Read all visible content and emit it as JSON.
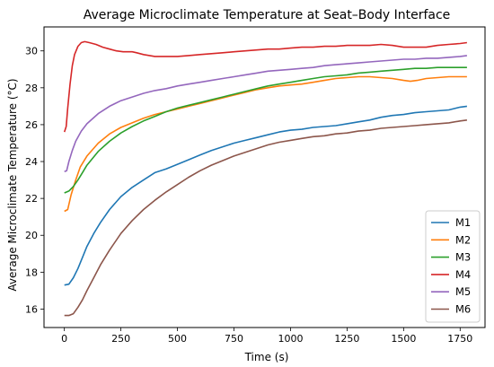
{
  "chart_data": {
    "type": "line",
    "title": "Average Microclimate Temperature at Seat–Body Interface",
    "xlabel": "Time (s)",
    "ylabel": "Average Microclimate Temperature (°C)",
    "xlim": [
      -90,
      1860
    ],
    "ylim": [
      15.0,
      31.3
    ],
    "xticks": [
      0,
      250,
      500,
      750,
      1000,
      1250,
      1500,
      1750
    ],
    "yticks": [
      16,
      18,
      20,
      22,
      24,
      26,
      28,
      30
    ],
    "grid": false,
    "legend_position": "lower-right",
    "series": [
      {
        "name": "M1",
        "color": "#1f77b4",
        "points": [
          [
            0,
            17.3
          ],
          [
            20,
            17.35
          ],
          [
            40,
            17.7
          ],
          [
            60,
            18.2
          ],
          [
            80,
            18.8
          ],
          [
            100,
            19.4
          ],
          [
            130,
            20.1
          ],
          [
            160,
            20.7
          ],
          [
            200,
            21.4
          ],
          [
            250,
            22.1
          ],
          [
            300,
            22.6
          ],
          [
            350,
            23.0
          ],
          [
            400,
            23.4
          ],
          [
            450,
            23.6
          ],
          [
            500,
            23.85
          ],
          [
            550,
            24.1
          ],
          [
            600,
            24.35
          ],
          [
            650,
            24.6
          ],
          [
            700,
            24.8
          ],
          [
            750,
            25.0
          ],
          [
            800,
            25.15
          ],
          [
            850,
            25.3
          ],
          [
            900,
            25.45
          ],
          [
            950,
            25.6
          ],
          [
            1000,
            25.7
          ],
          [
            1050,
            25.75
          ],
          [
            1100,
            25.85
          ],
          [
            1150,
            25.9
          ],
          [
            1200,
            25.95
          ],
          [
            1250,
            26.05
          ],
          [
            1300,
            26.15
          ],
          [
            1350,
            26.25
          ],
          [
            1400,
            26.4
          ],
          [
            1450,
            26.5
          ],
          [
            1500,
            26.55
          ],
          [
            1550,
            26.65
          ],
          [
            1600,
            26.7
          ],
          [
            1650,
            26.75
          ],
          [
            1700,
            26.8
          ],
          [
            1750,
            26.95
          ],
          [
            1780,
            27.0
          ]
        ]
      },
      {
        "name": "M2",
        "color": "#ff7f0e",
        "points": [
          [
            0,
            21.3
          ],
          [
            15,
            21.4
          ],
          [
            30,
            22.2
          ],
          [
            50,
            23.0
          ],
          [
            70,
            23.7
          ],
          [
            100,
            24.3
          ],
          [
            150,
            25.0
          ],
          [
            200,
            25.5
          ],
          [
            250,
            25.85
          ],
          [
            300,
            26.1
          ],
          [
            350,
            26.35
          ],
          [
            400,
            26.55
          ],
          [
            450,
            26.7
          ],
          [
            500,
            26.85
          ],
          [
            550,
            27.0
          ],
          [
            600,
            27.15
          ],
          [
            650,
            27.3
          ],
          [
            700,
            27.45
          ],
          [
            750,
            27.6
          ],
          [
            800,
            27.75
          ],
          [
            850,
            27.9
          ],
          [
            900,
            28.0
          ],
          [
            950,
            28.1
          ],
          [
            1000,
            28.15
          ],
          [
            1050,
            28.2
          ],
          [
            1100,
            28.3
          ],
          [
            1150,
            28.4
          ],
          [
            1200,
            28.5
          ],
          [
            1250,
            28.55
          ],
          [
            1300,
            28.6
          ],
          [
            1350,
            28.6
          ],
          [
            1400,
            28.55
          ],
          [
            1450,
            28.5
          ],
          [
            1500,
            28.4
          ],
          [
            1530,
            28.35
          ],
          [
            1560,
            28.4
          ],
          [
            1600,
            28.5
          ],
          [
            1650,
            28.55
          ],
          [
            1700,
            28.6
          ],
          [
            1750,
            28.6
          ],
          [
            1780,
            28.6
          ]
        ]
      },
      {
        "name": "M3",
        "color": "#2ca02c",
        "points": [
          [
            0,
            22.3
          ],
          [
            20,
            22.4
          ],
          [
            40,
            22.65
          ],
          [
            60,
            23.0
          ],
          [
            80,
            23.4
          ],
          [
            100,
            23.8
          ],
          [
            150,
            24.55
          ],
          [
            200,
            25.1
          ],
          [
            250,
            25.55
          ],
          [
            300,
            25.9
          ],
          [
            350,
            26.2
          ],
          [
            400,
            26.45
          ],
          [
            450,
            26.7
          ],
          [
            500,
            26.9
          ],
          [
            550,
            27.05
          ],
          [
            600,
            27.2
          ],
          [
            650,
            27.35
          ],
          [
            700,
            27.5
          ],
          [
            750,
            27.65
          ],
          [
            800,
            27.8
          ],
          [
            850,
            27.95
          ],
          [
            900,
            28.1
          ],
          [
            950,
            28.2
          ],
          [
            1000,
            28.3
          ],
          [
            1050,
            28.4
          ],
          [
            1100,
            28.5
          ],
          [
            1150,
            28.6
          ],
          [
            1200,
            28.65
          ],
          [
            1250,
            28.7
          ],
          [
            1300,
            28.8
          ],
          [
            1350,
            28.85
          ],
          [
            1400,
            28.9
          ],
          [
            1450,
            28.95
          ],
          [
            1500,
            29.0
          ],
          [
            1550,
            29.05
          ],
          [
            1600,
            29.05
          ],
          [
            1650,
            29.1
          ],
          [
            1700,
            29.1
          ],
          [
            1750,
            29.1
          ],
          [
            1780,
            29.1
          ]
        ]
      },
      {
        "name": "M4",
        "color": "#d62728",
        "points": [
          [
            0,
            25.6
          ],
          [
            8,
            25.9
          ],
          [
            15,
            26.9
          ],
          [
            25,
            28.2
          ],
          [
            35,
            29.2
          ],
          [
            45,
            29.8
          ],
          [
            60,
            30.25
          ],
          [
            75,
            30.45
          ],
          [
            90,
            30.5
          ],
          [
            110,
            30.45
          ],
          [
            140,
            30.35
          ],
          [
            170,
            30.2
          ],
          [
            200,
            30.1
          ],
          [
            230,
            30.0
          ],
          [
            260,
            29.95
          ],
          [
            300,
            29.95
          ],
          [
            320,
            29.9
          ],
          [
            350,
            29.8
          ],
          [
            400,
            29.7
          ],
          [
            450,
            29.7
          ],
          [
            500,
            29.7
          ],
          [
            550,
            29.75
          ],
          [
            600,
            29.8
          ],
          [
            650,
            29.85
          ],
          [
            700,
            29.9
          ],
          [
            750,
            29.95
          ],
          [
            800,
            30.0
          ],
          [
            850,
            30.05
          ],
          [
            900,
            30.1
          ],
          [
            950,
            30.1
          ],
          [
            1000,
            30.15
          ],
          [
            1050,
            30.2
          ],
          [
            1100,
            30.2
          ],
          [
            1150,
            30.25
          ],
          [
            1200,
            30.25
          ],
          [
            1250,
            30.3
          ],
          [
            1300,
            30.3
          ],
          [
            1350,
            30.3
          ],
          [
            1400,
            30.35
          ],
          [
            1450,
            30.3
          ],
          [
            1500,
            30.2
          ],
          [
            1550,
            30.2
          ],
          [
            1600,
            30.2
          ],
          [
            1650,
            30.3
          ],
          [
            1700,
            30.35
          ],
          [
            1750,
            30.4
          ],
          [
            1780,
            30.45
          ]
        ]
      },
      {
        "name": "M5",
        "color": "#9467bd",
        "points": [
          [
            0,
            23.45
          ],
          [
            10,
            23.5
          ],
          [
            20,
            24.0
          ],
          [
            35,
            24.6
          ],
          [
            50,
            25.1
          ],
          [
            75,
            25.65
          ],
          [
            100,
            26.05
          ],
          [
            150,
            26.6
          ],
          [
            200,
            27.0
          ],
          [
            250,
            27.3
          ],
          [
            300,
            27.5
          ],
          [
            350,
            27.7
          ],
          [
            400,
            27.85
          ],
          [
            450,
            27.95
          ],
          [
            500,
            28.1
          ],
          [
            550,
            28.2
          ],
          [
            600,
            28.3
          ],
          [
            650,
            28.4
          ],
          [
            700,
            28.5
          ],
          [
            750,
            28.6
          ],
          [
            800,
            28.7
          ],
          [
            850,
            28.8
          ],
          [
            900,
            28.9
          ],
          [
            950,
            28.95
          ],
          [
            1000,
            29.0
          ],
          [
            1050,
            29.05
          ],
          [
            1100,
            29.1
          ],
          [
            1150,
            29.2
          ],
          [
            1200,
            29.25
          ],
          [
            1250,
            29.3
          ],
          [
            1300,
            29.35
          ],
          [
            1350,
            29.4
          ],
          [
            1400,
            29.45
          ],
          [
            1450,
            29.5
          ],
          [
            1500,
            29.55
          ],
          [
            1550,
            29.55
          ],
          [
            1600,
            29.6
          ],
          [
            1650,
            29.6
          ],
          [
            1700,
            29.65
          ],
          [
            1750,
            29.7
          ],
          [
            1780,
            29.75
          ]
        ]
      },
      {
        "name": "M6",
        "color": "#8c564b",
        "points": [
          [
            0,
            15.65
          ],
          [
            20,
            15.65
          ],
          [
            40,
            15.75
          ],
          [
            60,
            16.1
          ],
          [
            80,
            16.5
          ],
          [
            100,
            17.0
          ],
          [
            130,
            17.7
          ],
          [
            160,
            18.4
          ],
          [
            200,
            19.2
          ],
          [
            250,
            20.1
          ],
          [
            300,
            20.8
          ],
          [
            350,
            21.4
          ],
          [
            400,
            21.9
          ],
          [
            450,
            22.35
          ],
          [
            500,
            22.75
          ],
          [
            550,
            23.15
          ],
          [
            600,
            23.5
          ],
          [
            650,
            23.8
          ],
          [
            700,
            24.05
          ],
          [
            750,
            24.3
          ],
          [
            800,
            24.5
          ],
          [
            850,
            24.7
          ],
          [
            900,
            24.9
          ],
          [
            950,
            25.05
          ],
          [
            1000,
            25.15
          ],
          [
            1050,
            25.25
          ],
          [
            1100,
            25.35
          ],
          [
            1150,
            25.4
          ],
          [
            1200,
            25.5
          ],
          [
            1250,
            25.55
          ],
          [
            1300,
            25.65
          ],
          [
            1350,
            25.7
          ],
          [
            1400,
            25.8
          ],
          [
            1450,
            25.85
          ],
          [
            1500,
            25.9
          ],
          [
            1550,
            25.95
          ],
          [
            1600,
            26.0
          ],
          [
            1650,
            26.05
          ],
          [
            1700,
            26.1
          ],
          [
            1750,
            26.2
          ],
          [
            1780,
            26.25
          ]
        ]
      }
    ]
  }
}
